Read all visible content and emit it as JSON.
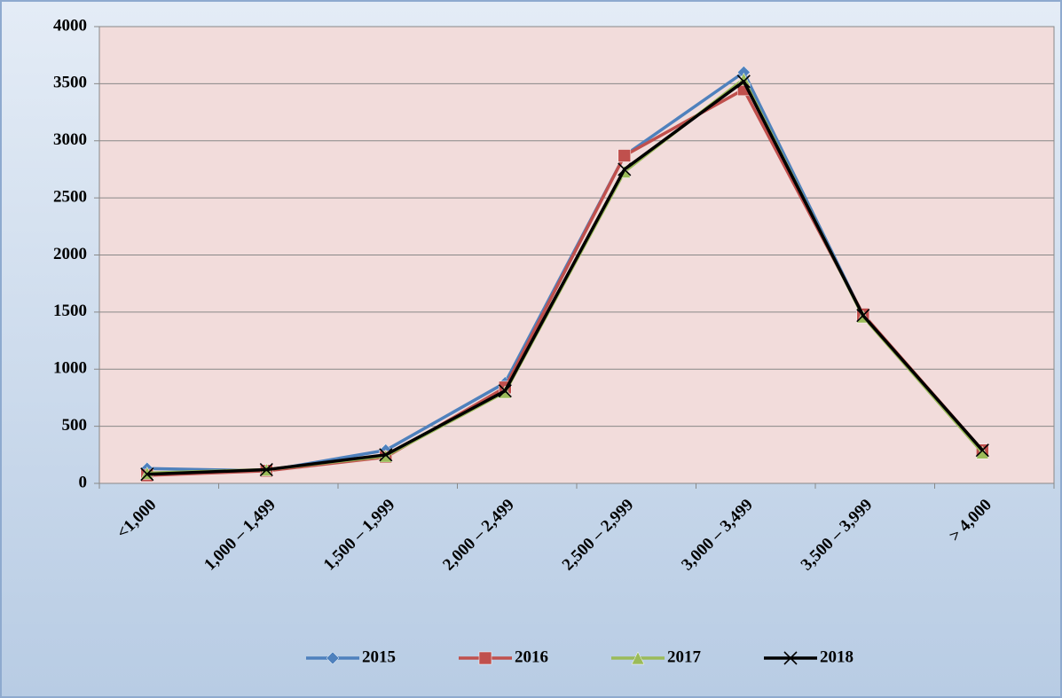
{
  "chart_data": {
    "type": "line",
    "categories": [
      "<1,000",
      "1,000 – 1,499",
      "1,500 – 1,999",
      "2,000 – 2,499",
      "2,500 – 2,999",
      "3,000 – 3,499",
      "3,500 – 3,999",
      "> 4,000"
    ],
    "series": [
      {
        "name": "2015",
        "color": "#4f81bd",
        "marker": "diamond",
        "values": [
          130,
          110,
          290,
          880,
          2870,
          3600,
          1470,
          280
        ]
      },
      {
        "name": "2016",
        "color": "#c0504d",
        "marker": "square",
        "values": [
          70,
          110,
          230,
          840,
          2870,
          3450,
          1480,
          290
        ]
      },
      {
        "name": "2017",
        "color": "#9bbb59",
        "marker": "triangle",
        "values": [
          90,
          120,
          240,
          800,
          2730,
          3540,
          1460,
          270
        ]
      },
      {
        "name": "2018",
        "color": "#000000",
        "marker": "x",
        "values": [
          80,
          120,
          250,
          810,
          2750,
          3520,
          1470,
          290
        ]
      }
    ],
    "ylim": [
      0,
      4000
    ],
    "yticks": [
      0,
      500,
      1000,
      1500,
      2000,
      2500,
      3000,
      3500,
      4000
    ],
    "grid": true,
    "legend": "bottom"
  }
}
